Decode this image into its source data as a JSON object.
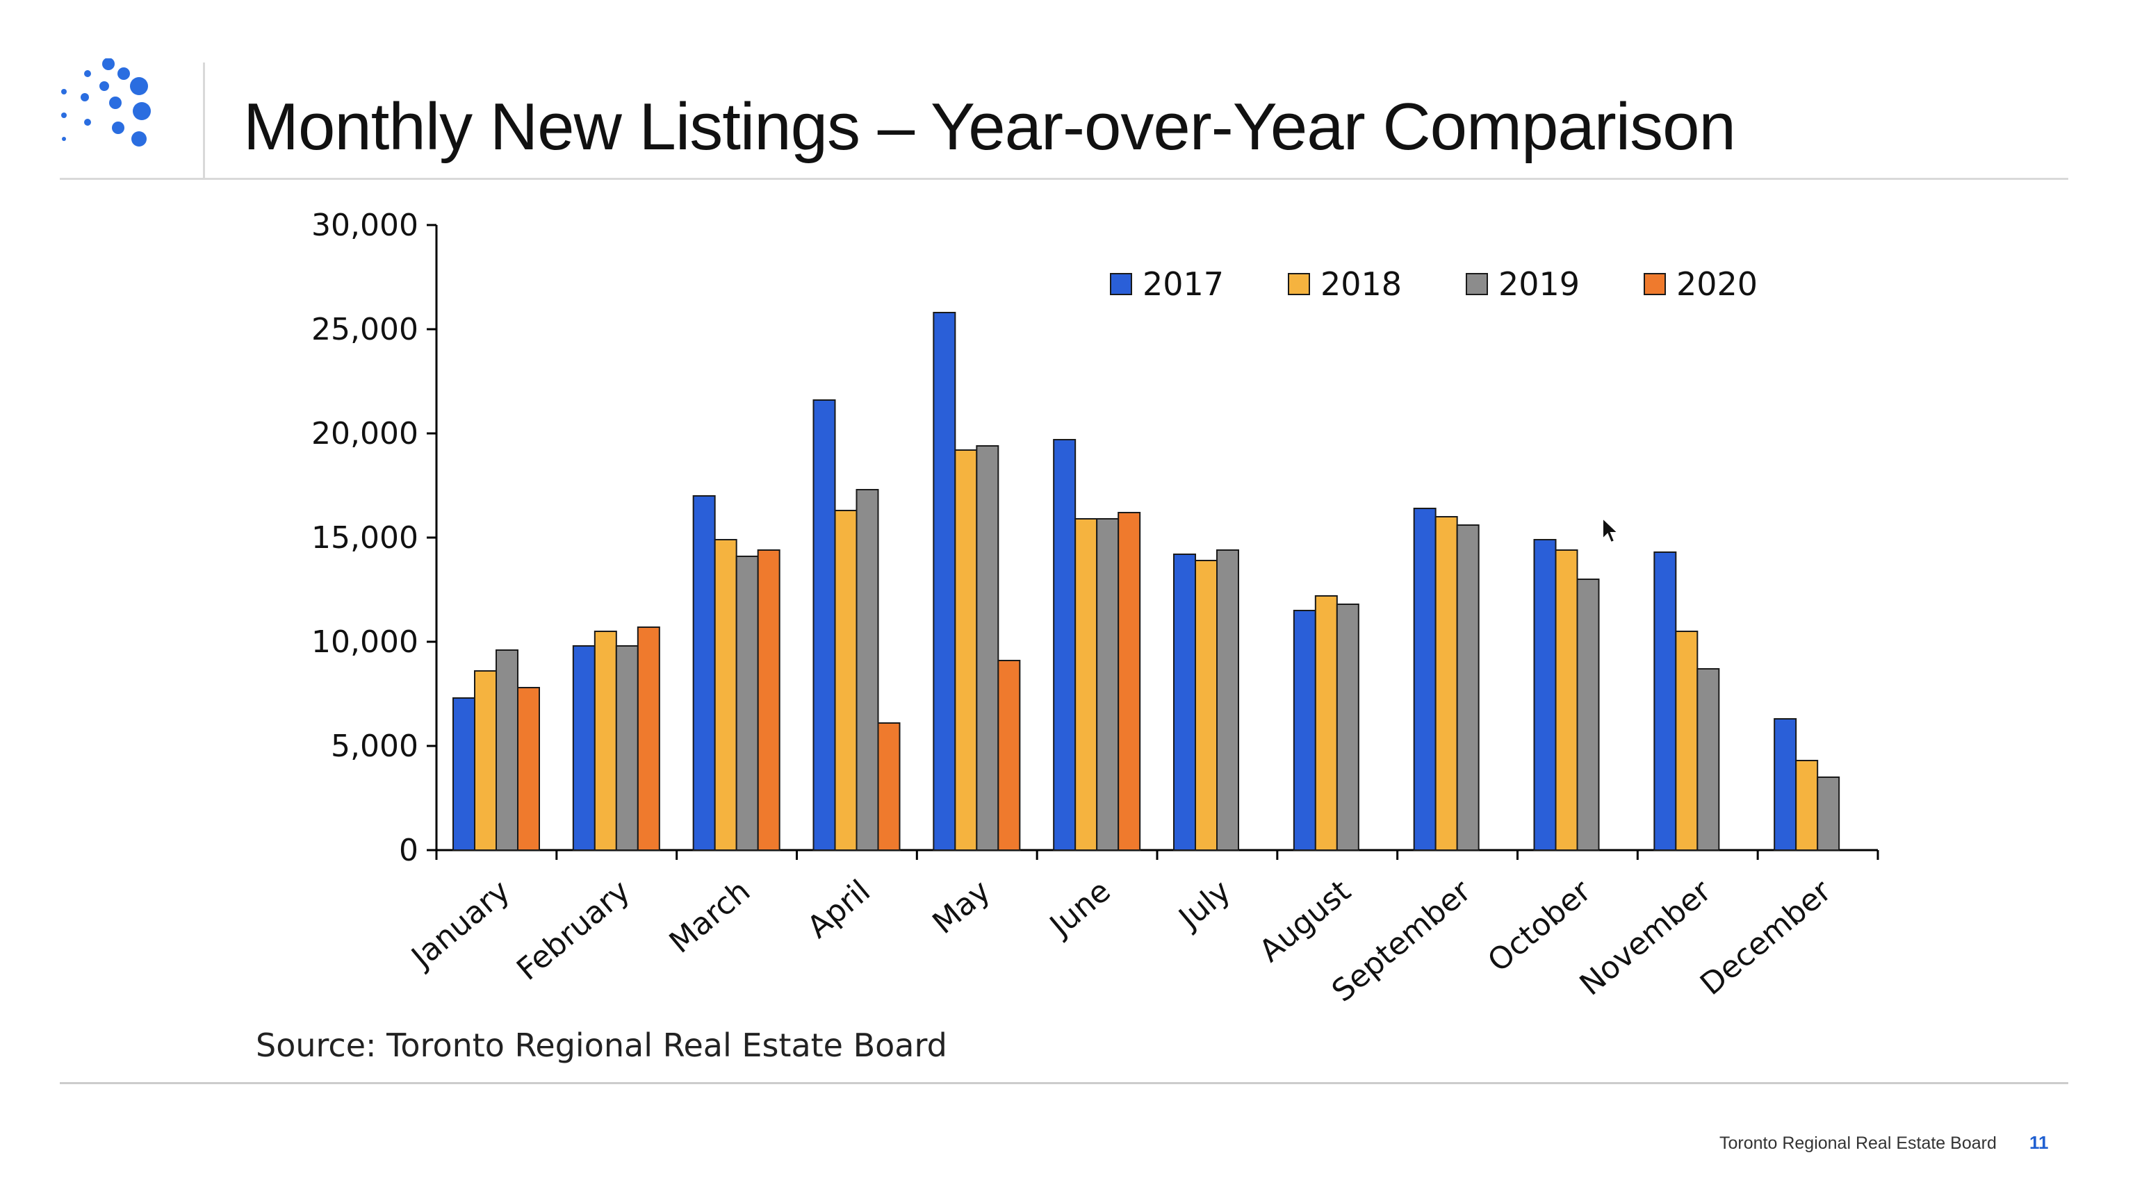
{
  "slide": {
    "title": "Monthly New Listings – Year-over-Year Comparison",
    "source": "Source: Toronto Regional Real Estate Board",
    "footer_org": "Toronto Regional Real Estate Board",
    "page_number": "11",
    "logo_icon": "dotted-sphere-logo-icon",
    "cursor_icon": "mouse-pointer-icon"
  },
  "chart_data": {
    "type": "bar",
    "title": "",
    "xlabel": "",
    "ylabel": "",
    "ylim": [
      0,
      30000
    ],
    "yticks": [
      0,
      5000,
      10000,
      15000,
      20000,
      25000,
      30000
    ],
    "ytick_labels": [
      "0",
      "5,000",
      "10,000",
      "15,000",
      "20,000",
      "25,000",
      "30,000"
    ],
    "grid": false,
    "legend_position": "top-right",
    "categories": [
      "January",
      "February",
      "March",
      "April",
      "May",
      "June",
      "July",
      "August",
      "September",
      "October",
      "November",
      "December"
    ],
    "series": [
      {
        "name": "2017",
        "color": "#2a5fd8",
        "values": [
          7300,
          9800,
          17000,
          21600,
          25800,
          19700,
          14200,
          11500,
          16400,
          14900,
          14300,
          6300
        ]
      },
      {
        "name": "2018",
        "color": "#f5b33f",
        "values": [
          8600,
          10500,
          14900,
          16300,
          19200,
          15900,
          13900,
          12200,
          16000,
          14400,
          10500,
          4300
        ]
      },
      {
        "name": "2019",
        "color": "#8c8c8c",
        "values": [
          9600,
          9800,
          14100,
          17300,
          19400,
          15900,
          14400,
          11800,
          15600,
          13000,
          8700,
          3500
        ]
      },
      {
        "name": "2020",
        "color": "#ef7a2d",
        "values": [
          7800,
          10700,
          14400,
          6100,
          9100,
          16200,
          null,
          null,
          null,
          null,
          null,
          null
        ]
      }
    ]
  }
}
